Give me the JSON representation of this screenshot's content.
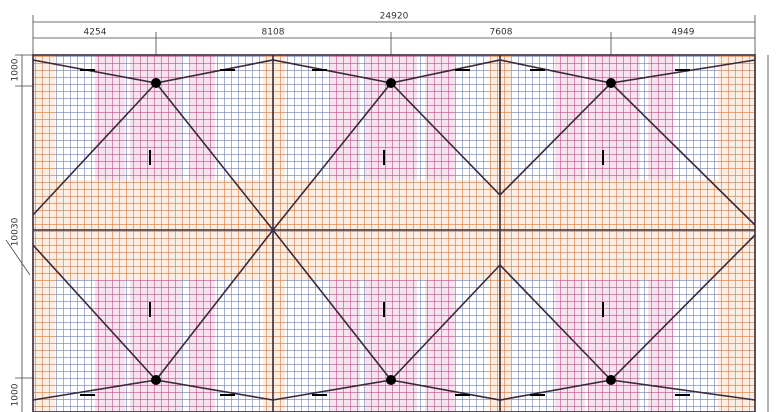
{
  "dimensions": {
    "total": "24920",
    "spans": [
      "4254",
      "8108",
      "7608",
      "4949"
    ],
    "left": [
      "1000",
      "10030",
      "1000"
    ]
  }
}
